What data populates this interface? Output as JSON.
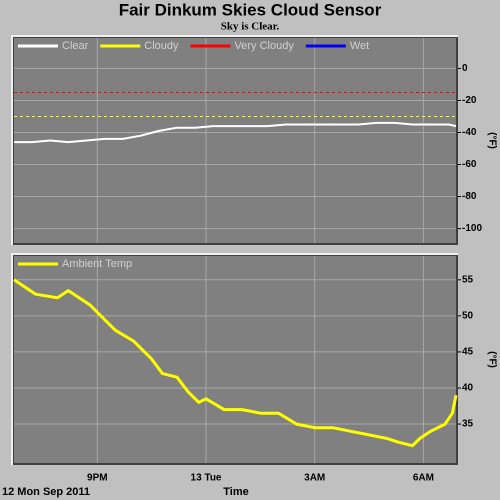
{
  "header": {
    "title": "Fair Dinkum Skies Cloud Sensor",
    "subtitle": "Sky is Clear."
  },
  "chart_data": [
    {
      "type": "line",
      "y_label": "(°F)",
      "legend": "top-left",
      "grid": true,
      "x": [
        18.7,
        19.2,
        19.7,
        20.2,
        20.7,
        21.2,
        21.7,
        22.2,
        22.7,
        23.2,
        23.7,
        24.2,
        24.7,
        25.2,
        25.7,
        26.2,
        26.7,
        27.2,
        27.7,
        28.2,
        28.7,
        29.2,
        29.7,
        30.2,
        30.7,
        30.9
      ],
      "xlim": [
        18.7,
        30.9
      ],
      "xticks": [
        21,
        24,
        27,
        30
      ],
      "ylim": [
        -109,
        19
      ],
      "yticks": [
        0,
        -20,
        -40,
        -60,
        -80,
        -100
      ],
      "series": [
        {
          "name": "Clear",
          "color": "#ffffff",
          "dash": false,
          "values": [
            -46,
            -46,
            -45,
            -46,
            -45,
            -44,
            -44,
            -42,
            -39,
            -37,
            -37,
            -36,
            -36,
            -36,
            -36,
            -35,
            -35,
            -35,
            -35,
            -35,
            -34,
            -34,
            -35,
            -35,
            -35,
            -36
          ]
        },
        {
          "name": "Cloudy",
          "color": "#ffff00",
          "dash": true,
          "values": [
            -30,
            -30,
            -30,
            -30,
            -30,
            -30,
            -30,
            -30,
            -30,
            -30,
            -30,
            -30,
            -30,
            -30,
            -30,
            -30,
            -30,
            -30,
            -30,
            -30,
            -30,
            -30,
            -30,
            -30,
            -30,
            -30
          ]
        },
        {
          "name": "Very Cloudy",
          "color": "#ff0000",
          "dash": true,
          "values": [
            -15,
            -15,
            -15,
            -15,
            -15,
            -15,
            -15,
            -15,
            -15,
            -15,
            -15,
            -15,
            -15,
            -15,
            -15,
            -15,
            -15,
            -15,
            -15,
            -15,
            -15,
            -15,
            -15,
            -15,
            -15,
            -15
          ]
        },
        {
          "name": "Wet",
          "color": "#0000ff",
          "dash": false,
          "values": [
            null,
            null,
            null,
            null,
            null,
            null,
            null,
            null,
            null,
            null,
            null,
            null,
            null,
            null,
            null,
            null,
            null,
            null,
            null,
            null,
            null,
            null,
            null,
            null,
            null,
            null
          ]
        }
      ]
    },
    {
      "type": "line",
      "y_label": "(°F)",
      "legend": "top-left",
      "grid": true,
      "x_label": "Time",
      "x_note": "12 Mon Sep 2011",
      "x": [
        18.7,
        19.3,
        19.9,
        20.2,
        20.8,
        21.0,
        21.5,
        22.0,
        22.5,
        22.8,
        23.2,
        23.5,
        23.8,
        24.0,
        24.5,
        25.0,
        25.5,
        26.0,
        26.5,
        27.0,
        27.5,
        28.0,
        28.5,
        29.0,
        29.3,
        29.7,
        29.9,
        30.2,
        30.6,
        30.8,
        30.9
      ],
      "xlim": [
        18.7,
        30.9
      ],
      "xticks": [
        {
          "value": 21,
          "label": "9PM"
        },
        {
          "value": 24,
          "label": "13 Tue"
        },
        {
          "value": 27,
          "label": "3AM"
        },
        {
          "value": 30,
          "label": "6AM"
        }
      ],
      "ylim": [
        29.6,
        58.3
      ],
      "yticks": [
        55,
        50,
        45,
        40,
        35
      ],
      "series": [
        {
          "name": "Ambient Temp",
          "color": "#ffff00",
          "dash": false,
          "values": [
            55,
            53,
            52.5,
            53.5,
            51.5,
            50.5,
            48,
            46.5,
            44,
            42,
            41.5,
            39.5,
            38,
            38.5,
            37,
            37,
            36.5,
            36.5,
            35,
            34.5,
            34.5,
            34,
            33.5,
            33,
            32.5,
            32,
            33,
            34,
            35,
            36.5,
            39
          ]
        }
      ]
    }
  ]
}
